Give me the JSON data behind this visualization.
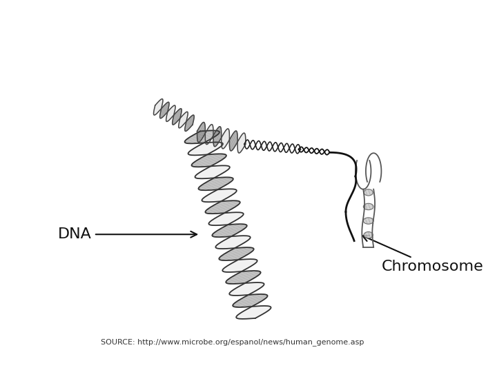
{
  "background_color": "#ffffff",
  "dna_label": "DNA",
  "chromosome_label": "Chromosome",
  "source_text": "SOURCE: http://www.microbe.org/espanol/news/human_genome.asp",
  "fig_width": 7.2,
  "fig_height": 5.4,
  "dpi": 100
}
